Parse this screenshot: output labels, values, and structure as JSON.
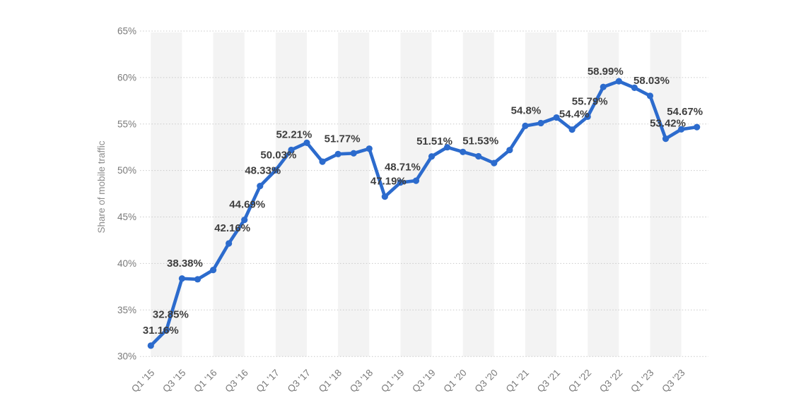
{
  "chart_data": {
    "type": "line",
    "title": "",
    "xlabel": "",
    "ylabel": "Share of mobile traffic",
    "legend": "none",
    "grid": "dotted horizontal lines at every 5%",
    "plot_bands": "alternating vertical light-gray bands, one per half-year pair (Q1..Q3 of each year shaded)",
    "ylim": [
      30,
      65
    ],
    "y_tick_labels": [
      "30%",
      "35%",
      "40%",
      "45%",
      "50%",
      "55%",
      "60%",
      "65%"
    ],
    "y_tick_values": [
      30,
      35,
      40,
      45,
      50,
      55,
      60,
      65
    ],
    "x_tick_labels": [
      "Q1 '15",
      "Q3 '15",
      "Q1 '16",
      "Q3 '16",
      "Q1 '17",
      "Q3 '17",
      "Q1 '18",
      "Q3 '18",
      "Q1 '19",
      "Q3 '19",
      "Q1 '20",
      "Q3 '20",
      "Q1 '21",
      "Q3 '21",
      "Q1 '22",
      "Q3 '22",
      "Q1 '23",
      "Q3 '23"
    ],
    "categories": [
      "Q1 '15",
      "Q2 '15",
      "Q3 '15",
      "Q4 '15",
      "Q1 '16",
      "Q2 '16",
      "Q3 '16",
      "Q4 '16",
      "Q1 '17",
      "Q2 '17",
      "Q3 '17",
      "Q4 '17",
      "Q1 '18",
      "Q2 '18",
      "Q3 '18",
      "Q4 '18",
      "Q1 '19",
      "Q2 '19",
      "Q3 '19",
      "Q4 '19",
      "Q1 '20",
      "Q2 '20",
      "Q3 '20",
      "Q4 '20",
      "Q1 '21",
      "Q2 '21",
      "Q3 '21",
      "Q4 '21",
      "Q1 '22",
      "Q2 '22",
      "Q3 '22",
      "Q4 '22",
      "Q1 '23",
      "Q2 '23",
      "Q3 '23",
      "Q4 '23"
    ],
    "values": [
      31.16,
      32.85,
      38.38,
      38.3,
      39.3,
      42.16,
      44.69,
      48.33,
      50.03,
      52.21,
      52.98,
      50.95,
      51.77,
      51.85,
      52.35,
      47.19,
      48.71,
      48.9,
      51.51,
      52.5,
      52.0,
      51.53,
      50.8,
      52.2,
      54.8,
      55.1,
      55.7,
      54.4,
      55.79,
      58.99,
      59.6,
      58.9,
      58.03,
      53.42,
      54.43,
      54.67
    ],
    "point_labels": [
      {
        "index": 0,
        "text": "31.16%",
        "dx": 14
      },
      {
        "index": 1,
        "text": "32.85%",
        "dx": 6
      },
      {
        "index": 2,
        "text": "38.38%",
        "dx": 4
      },
      {
        "index": 5,
        "text": "42.16%",
        "dx": 5
      },
      {
        "index": 6,
        "text": "44.69%",
        "dx": 4
      },
      {
        "index": 7,
        "text": "48.33%",
        "dx": 4
      },
      {
        "index": 8,
        "text": "50.03%",
        "dx": 4
      },
      {
        "index": 9,
        "text": "52.21%",
        "dx": 4
      },
      {
        "index": 12,
        "text": "51.77%",
        "dx": 6
      },
      {
        "index": 15,
        "text": "47.19%",
        "dx": 5
      },
      {
        "index": 16,
        "text": "48.71%",
        "dx": 3
      },
      {
        "index": 18,
        "text": "51.51%",
        "dx": 4
      },
      {
        "index": 21,
        "text": "51.53%",
        "dx": 3
      },
      {
        "index": 24,
        "text": "54.8%",
        "dx": 1
      },
      {
        "index": 27,
        "text": "54.4%",
        "dx": 3
      },
      {
        "index": 28,
        "text": "55.79%",
        "dx": 3
      },
      {
        "index": 29,
        "text": "58.99%",
        "dx": 3
      },
      {
        "index": 32,
        "text": "58.03%",
        "dx": 2
      },
      {
        "index": 33,
        "text": "53.42%",
        "dx": 3
      },
      {
        "index": 35,
        "text": "54.67%",
        "dx": -17
      }
    ],
    "colors": {
      "line": "#2c6bcd",
      "marker": "#2c6bcd",
      "band": "#f3f3f3",
      "grid": "#c9c9c9",
      "tick_text": "#7a7a7a",
      "axis_title_text": "#8c8c8c",
      "point_label_text": "#3e3e3e",
      "background": "#ffffff"
    }
  }
}
